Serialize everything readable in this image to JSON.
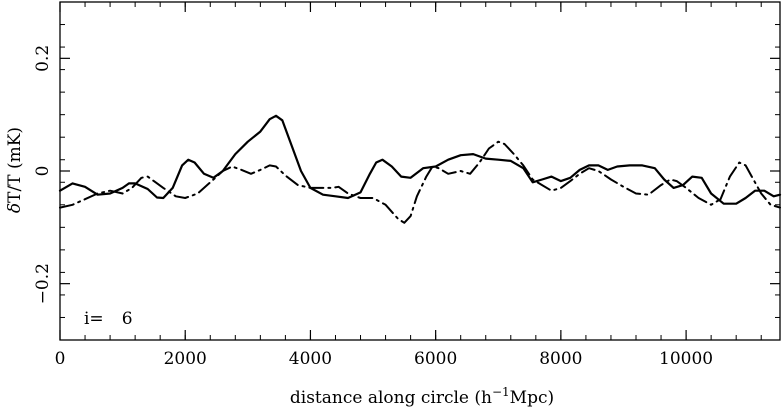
{
  "chart_data": {
    "type": "line",
    "xlabel_main": "distance along circle (h",
    "xlabel_sup": "−1",
    "xlabel_tail": "Mpc)",
    "ylabel_prefix": "δ",
    "ylabel_rest": "T/T (mK)",
    "annotation_label": "i=",
    "annotation_value": "6",
    "xlim": [
      0,
      11500
    ],
    "ylim": [
      -0.3,
      0.3
    ],
    "x_ticks": [
      {
        "value": 0,
        "label": "0"
      },
      {
        "value": 2000,
        "label": "2000"
      },
      {
        "value": 4000,
        "label": "4000"
      },
      {
        "value": 6000,
        "label": "6000"
      },
      {
        "value": 8000,
        "label": "8000"
      },
      {
        "value": 10000,
        "label": "10000"
      }
    ],
    "y_ticks": [
      {
        "value": -0.2,
        "label": "−0.2"
      },
      {
        "value": 0,
        "label": "0"
      },
      {
        "value": 0.2,
        "label": "0.2"
      }
    ],
    "x_minor_step": 400,
    "y_minor_step": 0.04,
    "series": [
      {
        "style": "solid",
        "color": "#000000",
        "points": [
          [
            0,
            -0.035
          ],
          [
            200,
            -0.022
          ],
          [
            400,
            -0.028
          ],
          [
            600,
            -0.042
          ],
          [
            800,
            -0.04
          ],
          [
            1000,
            -0.03
          ],
          [
            1100,
            -0.022
          ],
          [
            1200,
            -0.022
          ],
          [
            1400,
            -0.032
          ],
          [
            1550,
            -0.047
          ],
          [
            1650,
            -0.048
          ],
          [
            1800,
            -0.03
          ],
          [
            1950,
            0.01
          ],
          [
            2050,
            0.02
          ],
          [
            2150,
            0.015
          ],
          [
            2300,
            -0.005
          ],
          [
            2450,
            -0.012
          ],
          [
            2600,
            0.0
          ],
          [
            2800,
            0.03
          ],
          [
            3000,
            0.052
          ],
          [
            3200,
            0.07
          ],
          [
            3350,
            0.092
          ],
          [
            3450,
            0.098
          ],
          [
            3550,
            0.09
          ],
          [
            3700,
            0.045
          ],
          [
            3850,
            0.0
          ],
          [
            4000,
            -0.03
          ],
          [
            4200,
            -0.042
          ],
          [
            4400,
            -0.045
          ],
          [
            4600,
            -0.048
          ],
          [
            4800,
            -0.038
          ],
          [
            4950,
            -0.005
          ],
          [
            5050,
            0.015
          ],
          [
            5150,
            0.02
          ],
          [
            5300,
            0.008
          ],
          [
            5450,
            -0.01
          ],
          [
            5600,
            -0.012
          ],
          [
            5800,
            0.005
          ],
          [
            6000,
            0.008
          ],
          [
            6200,
            0.02
          ],
          [
            6400,
            0.028
          ],
          [
            6600,
            0.03
          ],
          [
            6800,
            0.022
          ],
          [
            7000,
            0.02
          ],
          [
            7200,
            0.018
          ],
          [
            7400,
            0.005
          ],
          [
            7550,
            -0.02
          ],
          [
            7700,
            -0.015
          ],
          [
            7850,
            -0.01
          ],
          [
            8000,
            -0.018
          ],
          [
            8150,
            -0.012
          ],
          [
            8300,
            0.002
          ],
          [
            8450,
            0.01
          ],
          [
            8600,
            0.01
          ],
          [
            8750,
            0.002
          ],
          [
            8900,
            0.008
          ],
          [
            9100,
            0.01
          ],
          [
            9300,
            0.01
          ],
          [
            9500,
            0.005
          ],
          [
            9650,
            -0.015
          ],
          [
            9800,
            -0.03
          ],
          [
            9950,
            -0.025
          ],
          [
            10100,
            -0.01
          ],
          [
            10250,
            -0.012
          ],
          [
            10400,
            -0.04
          ],
          [
            10600,
            -0.058
          ],
          [
            10800,
            -0.058
          ],
          [
            10950,
            -0.048
          ],
          [
            11100,
            -0.035
          ],
          [
            11250,
            -0.035
          ],
          [
            11400,
            -0.045
          ],
          [
            11500,
            -0.042
          ]
        ]
      },
      {
        "style": "dash-dot",
        "color": "#000000",
        "points": [
          [
            0,
            -0.065
          ],
          [
            200,
            -0.06
          ],
          [
            400,
            -0.05
          ],
          [
            600,
            -0.04
          ],
          [
            800,
            -0.035
          ],
          [
            1000,
            -0.04
          ],
          [
            1150,
            -0.03
          ],
          [
            1300,
            -0.012
          ],
          [
            1400,
            -0.01
          ],
          [
            1500,
            -0.018
          ],
          [
            1650,
            -0.03
          ],
          [
            1850,
            -0.045
          ],
          [
            2000,
            -0.048
          ],
          [
            2200,
            -0.04
          ],
          [
            2400,
            -0.02
          ],
          [
            2600,
            0.0
          ],
          [
            2750,
            0.008
          ],
          [
            2900,
            0.002
          ],
          [
            3050,
            -0.005
          ],
          [
            3200,
            0.002
          ],
          [
            3350,
            0.01
          ],
          [
            3450,
            0.008
          ],
          [
            3600,
            -0.008
          ],
          [
            3800,
            -0.025
          ],
          [
            4000,
            -0.03
          ],
          [
            4200,
            -0.03
          ],
          [
            4350,
            -0.03
          ],
          [
            4450,
            -0.028
          ],
          [
            4600,
            -0.04
          ],
          [
            4800,
            -0.048
          ],
          [
            5000,
            -0.048
          ],
          [
            5200,
            -0.06
          ],
          [
            5400,
            -0.085
          ],
          [
            5500,
            -0.092
          ],
          [
            5600,
            -0.08
          ],
          [
            5700,
            -0.045
          ],
          [
            5850,
            -0.01
          ],
          [
            5950,
            0.008
          ],
          [
            6050,
            0.005
          ],
          [
            6200,
            -0.005
          ],
          [
            6400,
            0.0
          ],
          [
            6550,
            -0.005
          ],
          [
            6700,
            0.015
          ],
          [
            6850,
            0.04
          ],
          [
            7000,
            0.052
          ],
          [
            7100,
            0.048
          ],
          [
            7250,
            0.03
          ],
          [
            7400,
            0.01
          ],
          [
            7550,
            -0.015
          ],
          [
            7700,
            -0.025
          ],
          [
            7850,
            -0.035
          ],
          [
            8000,
            -0.03
          ],
          [
            8150,
            -0.018
          ],
          [
            8300,
            -0.005
          ],
          [
            8450,
            0.005
          ],
          [
            8600,
            0.0
          ],
          [
            8800,
            -0.015
          ],
          [
            9000,
            -0.028
          ],
          [
            9200,
            -0.04
          ],
          [
            9400,
            -0.042
          ],
          [
            9600,
            -0.025
          ],
          [
            9750,
            -0.015
          ],
          [
            9850,
            -0.018
          ],
          [
            10000,
            -0.03
          ],
          [
            10200,
            -0.048
          ],
          [
            10400,
            -0.06
          ],
          [
            10550,
            -0.05
          ],
          [
            10700,
            -0.01
          ],
          [
            10850,
            0.015
          ],
          [
            10950,
            0.01
          ],
          [
            11050,
            -0.01
          ],
          [
            11200,
            -0.04
          ],
          [
            11350,
            -0.06
          ],
          [
            11500,
            -0.065
          ]
        ]
      }
    ]
  }
}
